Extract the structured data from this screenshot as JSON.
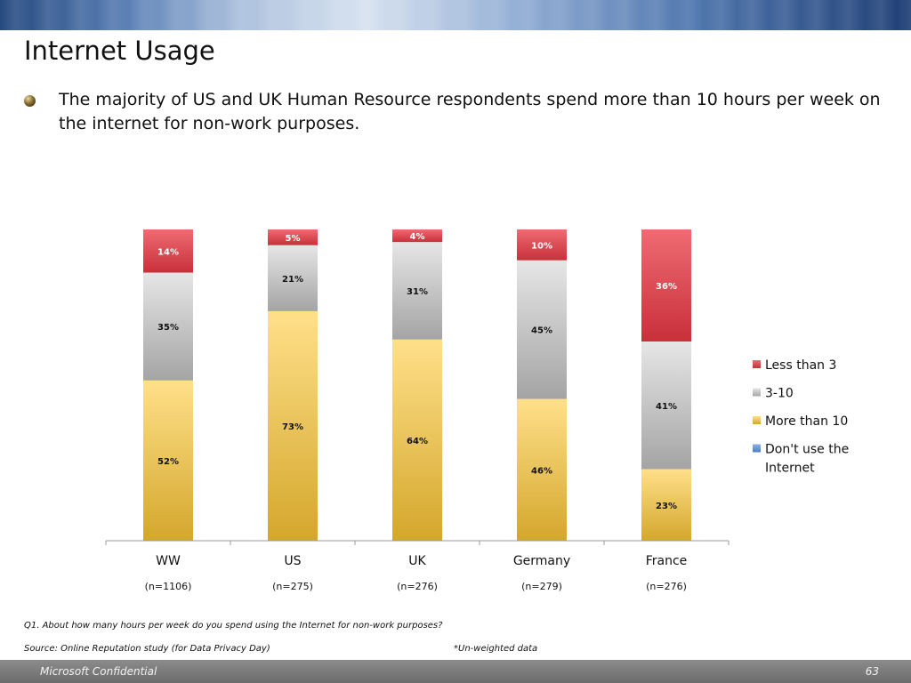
{
  "slide": {
    "title": "Internet Usage",
    "bullet": "The majority of US and UK Human Resource respondents spend more than 10 hours per week on the internet for non-work purposes."
  },
  "chart_data": {
    "type": "bar",
    "stacked": true,
    "categories": [
      "WW",
      "US",
      "UK",
      "Germany",
      "France"
    ],
    "sample_sizes": [
      "(n=1106)",
      "(n=275)",
      "(n=276)",
      "(n=279)",
      "(n=276)"
    ],
    "series": [
      {
        "name": "Don't use the Internet",
        "values": [
          0,
          0,
          0,
          0,
          0
        ],
        "color": "#5b8fd6"
      },
      {
        "name": "More than 10",
        "values": [
          52,
          73,
          64,
          46,
          23
        ],
        "color": "#f2c94c"
      },
      {
        "name": "3-10",
        "values": [
          35,
          21,
          31,
          45,
          41
        ],
        "color": "#c8c8c8"
      },
      {
        "name": "Less than 3",
        "values": [
          14,
          5,
          4,
          10,
          36
        ],
        "color": "#e0434f"
      }
    ],
    "data_labels": [
      [
        "",
        "52%",
        "35%",
        "14%"
      ],
      [
        "",
        "73%",
        "21%",
        "5%"
      ],
      [
        "",
        "64%",
        "31%",
        "4%"
      ],
      [
        "",
        "46%",
        "45%",
        "10%"
      ],
      [
        "",
        "23%",
        "41%",
        "36%"
      ]
    ],
    "legend_entries": [
      "Less than 3",
      "3-10",
      "More than 10",
      "Don't use the Internet"
    ],
    "legend_position": "right",
    "ylim": [
      0,
      100
    ],
    "grid": false
  },
  "footnotes": {
    "question": "Q1. About how many hours per week do you spend using the Internet for non-work purposes?",
    "source": "Source: Online Reputation study (for Data Privacy Day)",
    "note": "*Un-weighted data"
  },
  "footer": {
    "left": "Microsoft Confidential",
    "page_number": "63"
  }
}
